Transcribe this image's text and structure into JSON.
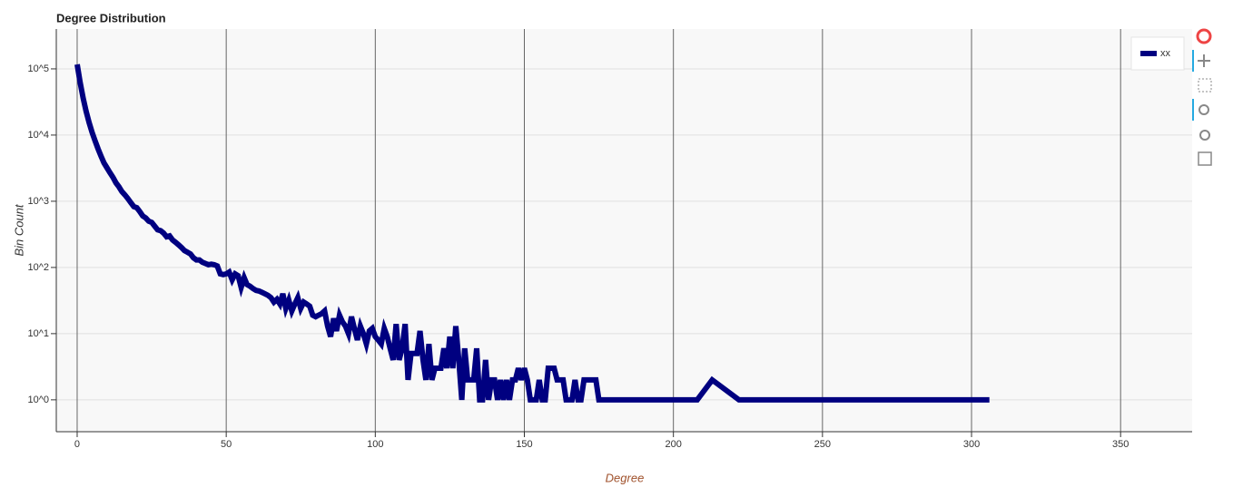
{
  "chart_data": {
    "type": "line",
    "title": "Degree Distribution",
    "x_label": "Degree",
    "y_label": "Bin Count",
    "log_y": true,
    "grid": true,
    "legend": "top-right",
    "x": [
      0,
      1,
      2,
      3,
      4,
      5,
      6,
      7,
      8,
      9,
      10,
      11,
      12,
      13,
      14,
      15,
      16,
      17,
      18,
      19,
      20,
      21,
      22,
      23,
      24,
      25,
      26,
      27,
      28,
      29,
      30,
      31,
      32,
      33,
      34,
      35,
      36,
      37,
      38,
      39,
      40,
      41,
      42,
      43,
      44,
      45,
      46,
      47,
      48,
      49,
      50,
      51,
      52,
      53,
      54,
      55,
      56,
      57,
      58,
      59,
      60,
      61,
      62,
      63,
      64,
      65,
      66,
      67,
      68,
      69,
      70,
      71,
      72,
      73,
      74,
      75,
      76,
      77,
      78,
      79,
      80,
      81,
      82,
      83,
      84,
      85,
      86,
      87,
      88,
      89,
      90,
      91,
      92,
      93,
      94,
      95,
      96,
      97,
      98,
      99,
      100,
      101,
      102,
      103,
      104,
      105,
      106,
      107,
      108,
      109,
      110,
      111,
      112,
      113,
      114,
      115,
      116,
      117,
      118,
      119,
      120,
      121,
      122,
      123,
      124,
      125,
      126,
      127,
      128,
      129,
      130,
      131,
      132,
      133,
      134,
      135,
      136,
      137,
      138,
      139,
      140,
      141,
      142,
      143,
      144,
      145,
      146,
      147,
      148,
      149,
      150,
      151,
      152,
      153,
      154,
      155,
      156,
      157,
      158,
      159,
      160,
      161,
      162,
      163,
      164,
      165,
      166,
      167,
      168,
      169,
      170,
      171,
      172,
      173,
      174,
      175,
      176,
      208,
      213,
      222,
      306
    ],
    "series": [
      {
        "name": "xx",
        "color": "#000080",
        "values": [
          117000,
          62000,
          36000,
          23000,
          15500,
          11000,
          8200,
          6200,
          4800,
          3800,
          3200,
          2700,
          2300,
          1900,
          1650,
          1400,
          1250,
          1100,
          950,
          830,
          800,
          700,
          600,
          560,
          500,
          480,
          420,
          370,
          360,
          330,
          290,
          300,
          260,
          240,
          220,
          200,
          180,
          170,
          160,
          140,
          130,
          130,
          120,
          115,
          110,
          112,
          110,
          105,
          80,
          78,
          80,
          85,
          65,
          80,
          75,
          50,
          70,
          55,
          52,
          48,
          45,
          44,
          42,
          40,
          38,
          35,
          30,
          33,
          28,
          40,
          24,
          32,
          22,
          28,
          35,
          24,
          30,
          28,
          26,
          19,
          18,
          19,
          20,
          22,
          13,
          9,
          17,
          11,
          19,
          15,
          13,
          10,
          18,
          12,
          8,
          13,
          10,
          7,
          11,
          12,
          9,
          8,
          7,
          12,
          9,
          6,
          4,
          14,
          4,
          6,
          14,
          2,
          5,
          5,
          5,
          11,
          4,
          2,
          7,
          2,
          3,
          3,
          3,
          6,
          3,
          9,
          3,
          13,
          4,
          1,
          6,
          2,
          2,
          2,
          6,
          1,
          1,
          4,
          1,
          2,
          2,
          1,
          2,
          1,
          2,
          1,
          2,
          2,
          3,
          2,
          3,
          2,
          1,
          1,
          1,
          2,
          1,
          1,
          3,
          3,
          3,
          2,
          2,
          2,
          1,
          1,
          1,
          2,
          1,
          1,
          2,
          2,
          2,
          2,
          2,
          1,
          1,
          1,
          2,
          1,
          1
        ]
      }
    ],
    "xlim": [
      -7,
      374
    ],
    "xticks": [
      0,
      50,
      100,
      150,
      200,
      250,
      300,
      350
    ],
    "ylim": [
      0.33,
      400000
    ],
    "yticks": [
      {
        "value": 1,
        "label": "10^0"
      },
      {
        "value": 10,
        "label": "10^1"
      },
      {
        "value": 100,
        "label": "10^2"
      },
      {
        "value": 1000,
        "label": "10^3"
      },
      {
        "value": 10000,
        "label": "10^4"
      },
      {
        "value": 100000,
        "label": "10^5"
      }
    ]
  }
}
